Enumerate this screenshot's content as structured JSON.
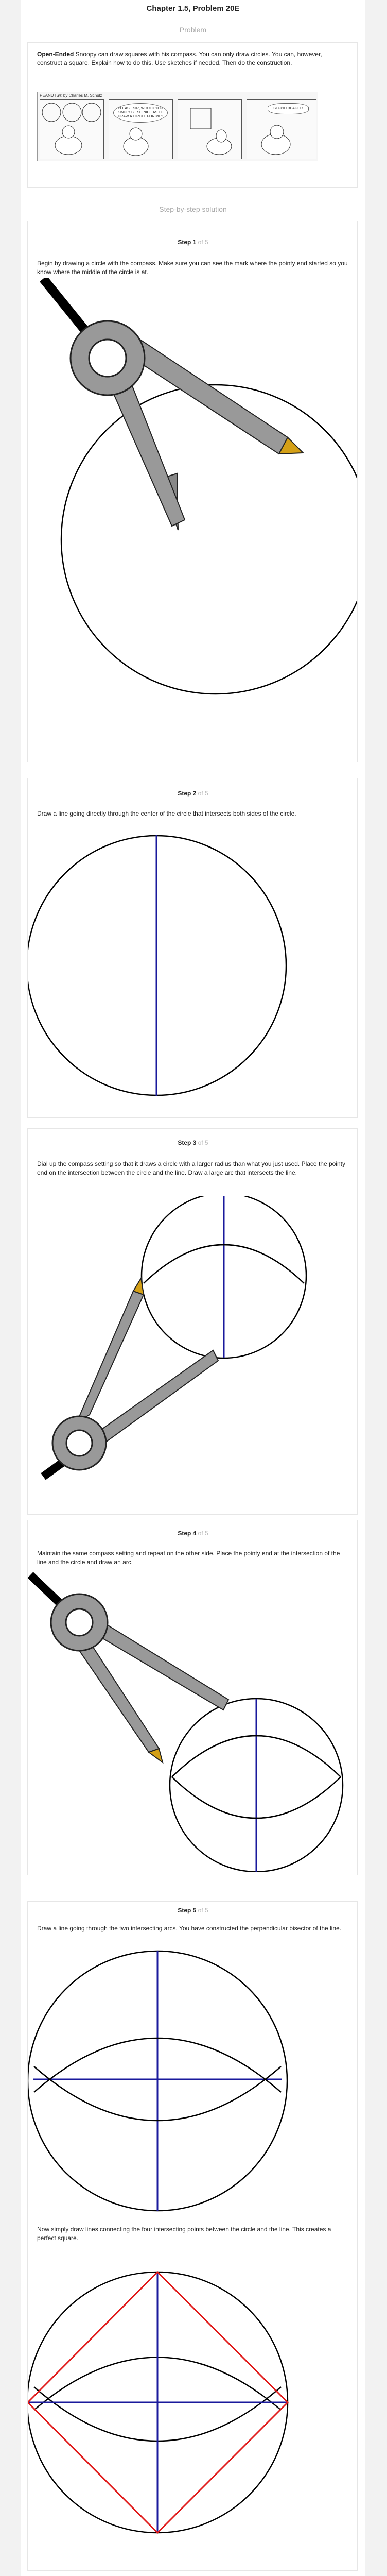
{
  "chapter_title": "Chapter 1.5, Problem 20E",
  "problem_heading": "Problem",
  "problem": {
    "lead": "Open-Ended",
    "text": " Snoopy can draw squares with his compass. You can only draw circles. You can, however, construct a square. Explain how to do this. Use sketches if needed. Then do the construction."
  },
  "comic": {
    "credit": "PEANUTS® by Charles M. Schulz",
    "bubble1": "PLEASE SIR, WOULD YOU KINDLY BE SO NICE AS TO DRAW A CIRCLE FOR ME?",
    "bubble2": "STUPID BEAGLE!"
  },
  "solution_heading": "Step-by-step solution",
  "steps": [
    {
      "label": "Step 1",
      "of": "of 5",
      "text": "Begin by drawing a circle with the compass. Make sure you can see the mark where the pointy end started so you know where the middle of the circle is at."
    },
    {
      "label": "Step 2",
      "of": "of 5",
      "text": "Draw a line going directly through the center of the circle that intersects both sides of the circle."
    },
    {
      "label": "Step 3",
      "of": "of 5",
      "text": "Dial up the compass setting so that it draws a circle with a larger radius than what you just used. Place the pointy end on the intersection between the circle and the line. Draw a large arc that intersects the line."
    },
    {
      "label": "Step 4",
      "of": "of 5",
      "text": "Maintain the same compass setting and repeat on the other side. Place the pointy end at the intersection of the line and the circle and draw an arc."
    },
    {
      "label": "Step 5",
      "of": "of 5",
      "text": "Draw a line going through the two intersecting arcs. You have constructed the perpendicular bisector of the line."
    }
  ],
  "final_text": "Now simply draw lines connecting the four intersecting points between the circle and the line. This creates a perfect square.",
  "colors": {
    "blue_line": "#1a1a9c",
    "red_line": "#e01a1a",
    "compass_gray": "#999999",
    "pencil_tip": "#d4a017"
  }
}
